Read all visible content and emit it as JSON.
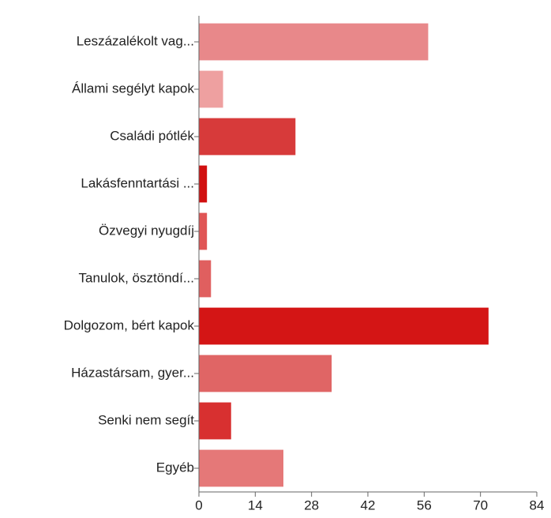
{
  "chart_data": {
    "type": "bar",
    "orientation": "horizontal",
    "categories": [
      "Leszázalékolt vag...",
      "Állami segélyt kapok",
      "Családi pótlék",
      "Lakásfenntartási ...",
      "Özvegyi nyugdíj",
      "Tanulok, ösztöndí...",
      "Dolgozom, bért kapok",
      "Házastársam, gyer...",
      "Senki nem segít",
      "Egyéb"
    ],
    "values": [
      57,
      6,
      24,
      2,
      2,
      3,
      72,
      33,
      8,
      21
    ],
    "colors": [
      "#e8888a",
      "#eea0a0",
      "#d73a3a",
      "#d10f0f",
      "#e05555",
      "#e05f5f",
      "#d41515",
      "#e06565",
      "#d83030",
      "#e57878"
    ],
    "xlim": [
      0,
      84
    ],
    "xticks": [
      0,
      14,
      28,
      42,
      56,
      70,
      84
    ],
    "grid": false
  }
}
